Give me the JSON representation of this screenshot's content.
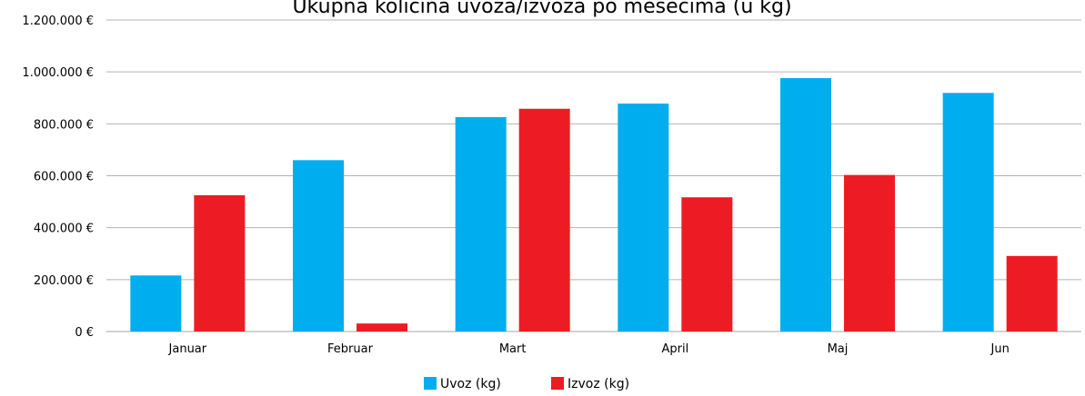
{
  "chart_data": {
    "type": "bar",
    "title": "Ukupna kolicina uvoza/izvoza po mesecima (u kg)",
    "categories": [
      "Januar",
      "Februar",
      "Mart",
      "April",
      "Maj",
      "Jun"
    ],
    "series": [
      {
        "name": "Uvoz (kg)",
        "color": "#00aeef",
        "values": [
          216000,
          660000,
          826000,
          878000,
          976000,
          919000
        ]
      },
      {
        "name": "Izvoz (kg)",
        "color": "#ed1c24",
        "values": [
          525000,
          31000,
          858000,
          517000,
          603000,
          291000
        ]
      }
    ],
    "ylim": [
      0,
      1200000
    ],
    "yticks": [
      {
        "value": 0,
        "label": "0 €"
      },
      {
        "value": 200000,
        "label": "200.000 €"
      },
      {
        "value": 400000,
        "label": "400.000 €"
      },
      {
        "value": 600000,
        "label": "600.000 €"
      },
      {
        "value": 800000,
        "label": "800.000 €"
      },
      {
        "value": 1000000,
        "label": "1.000.000 €"
      },
      {
        "value": 1200000,
        "label": "1.200.000 €"
      }
    ],
    "grid": true,
    "legend_position": "bottom",
    "xlabel": "",
    "ylabel": ""
  }
}
